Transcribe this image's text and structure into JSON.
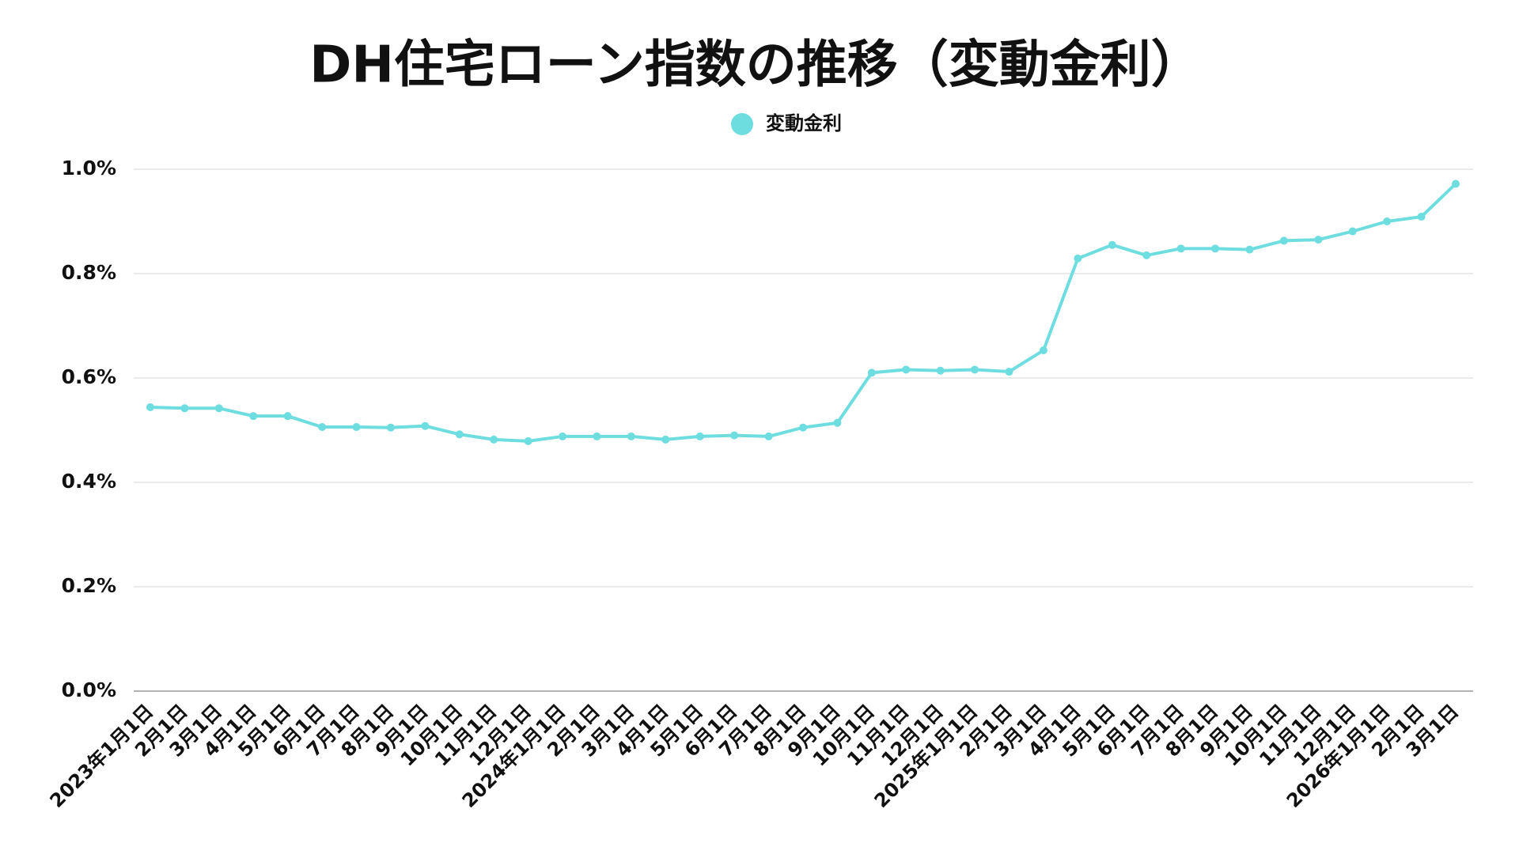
{
  "chart_data": {
    "type": "line",
    "title": "DH住宅ローン指数の推移（変動金利）",
    "categories": [
      "2023年1月1日",
      "2月1日",
      "3月1日",
      "4月1日",
      "5月1日",
      "6月1日",
      "7月1日",
      "8月1日",
      "9月1日",
      "10月1日",
      "11月1日",
      "12月1日",
      "2024年1月1日",
      "2月1日",
      "3月1日",
      "4月1日",
      "5月1日",
      "6月1日",
      "7月1日",
      "8月1日",
      "9月1日",
      "10月1日",
      "11月1日",
      "12月1日",
      "2025年1月1日",
      "2月1日",
      "3月1日",
      "4月1日",
      "5月1日",
      "6月1日",
      "7月1日",
      "8月1日",
      "9月1日",
      "10月1日",
      "11月1日",
      "12月1日",
      "2026年1月1日",
      "2月1日",
      "3月1日"
    ],
    "series": [
      {
        "name": "変動金利",
        "color": "#6ddde0",
        "values": [
          0.544,
          0.542,
          0.542,
          0.527,
          0.527,
          0.506,
          0.506,
          0.505,
          0.508,
          0.492,
          0.482,
          0.479,
          0.488,
          0.488,
          0.488,
          0.482,
          0.488,
          0.49,
          0.488,
          0.505,
          0.514,
          0.61,
          0.616,
          0.614,
          0.616,
          0.612,
          0.653,
          0.829,
          0.855,
          0.835,
          0.848,
          0.848,
          0.846,
          0.863,
          0.865,
          0.881,
          0.9,
          0.909,
          0.972
        ]
      }
    ],
    "ylim": [
      0,
      1.0
    ],
    "yticks": [
      {
        "value": 0,
        "label": "0.0%"
      },
      {
        "value": 0.2,
        "label": "0.2%"
      },
      {
        "value": 0.4,
        "label": "0.4%"
      },
      {
        "value": 0.6,
        "label": "0.6%"
      },
      {
        "value": 0.8,
        "label": "0.8%"
      },
      {
        "value": 1.0,
        "label": "1.0%"
      }
    ],
    "grid": true,
    "legend": "top"
  }
}
